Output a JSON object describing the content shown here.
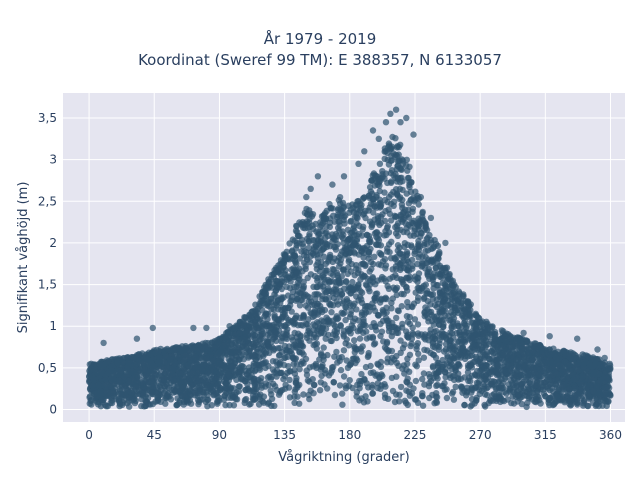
{
  "chart_data": {
    "type": "scatter",
    "title": "År 1979 - 2019",
    "subtitle": "Koordinat (Sweref 99 TM): E 388357, N 6133057",
    "xlabel": "Vågriktning (grader)",
    "ylabel": "Signifikant våghöjd (m)",
    "xlim": [
      -18,
      370
    ],
    "ylim": [
      -0.15,
      3.8
    ],
    "xticks": [
      0,
      45,
      90,
      135,
      180,
      225,
      270,
      315,
      360
    ],
    "xtick_labels": [
      "0",
      "45",
      "90",
      "135",
      "180",
      "225",
      "270",
      "315",
      "360"
    ],
    "yticks": [
      0,
      0.5,
      1,
      1.5,
      2,
      2.5,
      3,
      3.5
    ],
    "ytick_labels": [
      "0",
      "0,5",
      "1",
      "1,5",
      "2",
      "2,5",
      "3",
      "3,5"
    ],
    "grid": true,
    "marker_color": "#2f5470",
    "envelope": {
      "direction": [
        0,
        15,
        30,
        45,
        60,
        75,
        90,
        100,
        110,
        120,
        130,
        140,
        150,
        160,
        170,
        180,
        190,
        200,
        210,
        220,
        230,
        240,
        250,
        260,
        270,
        280,
        290,
        300,
        315,
        330,
        345,
        360
      ],
      "max_height": [
        0.55,
        0.6,
        0.65,
        0.72,
        0.75,
        0.78,
        0.85,
        1.0,
        1.15,
        1.45,
        1.75,
        2.1,
        2.45,
        2.3,
        2.6,
        2.45,
        2.55,
        3.0,
        3.35,
        3.0,
        2.4,
        2.0,
        1.6,
        1.35,
        1.1,
        1.0,
        0.9,
        0.85,
        0.75,
        0.7,
        0.65,
        0.55
      ]
    },
    "outliers": [
      {
        "x": 212,
        "y": 3.6
      },
      {
        "x": 208,
        "y": 3.55
      },
      {
        "x": 215,
        "y": 3.45
      },
      {
        "x": 205,
        "y": 3.45
      },
      {
        "x": 219,
        "y": 3.5
      },
      {
        "x": 196,
        "y": 3.35
      },
      {
        "x": 224,
        "y": 3.3
      },
      {
        "x": 200,
        "y": 3.25
      },
      {
        "x": 190,
        "y": 3.1
      },
      {
        "x": 186,
        "y": 2.95
      },
      {
        "x": 176,
        "y": 2.8
      },
      {
        "x": 158,
        "y": 2.8
      },
      {
        "x": 168,
        "y": 2.7
      },
      {
        "x": 153,
        "y": 2.65
      },
      {
        "x": 150,
        "y": 2.55
      },
      {
        "x": 229,
        "y": 2.55
      },
      {
        "x": 236,
        "y": 2.3
      },
      {
        "x": 246,
        "y": 2.0
      },
      {
        "x": 134,
        "y": 1.7
      },
      {
        "x": 121,
        "y": 1.4
      },
      {
        "x": 108,
        "y": 1.1
      },
      {
        "x": 97,
        "y": 1.0
      },
      {
        "x": 81,
        "y": 0.98
      },
      {
        "x": 72,
        "y": 0.98
      },
      {
        "x": 44,
        "y": 0.98
      },
      {
        "x": 33,
        "y": 0.85
      },
      {
        "x": 10,
        "y": 0.8
      },
      {
        "x": 270,
        "y": 1.05
      },
      {
        "x": 285,
        "y": 0.95
      },
      {
        "x": 300,
        "y": 0.92
      },
      {
        "x": 318,
        "y": 0.88
      },
      {
        "x": 337,
        "y": 0.85
      },
      {
        "x": 351,
        "y": 0.72
      },
      {
        "x": 356,
        "y": 0.62
      }
    ]
  }
}
